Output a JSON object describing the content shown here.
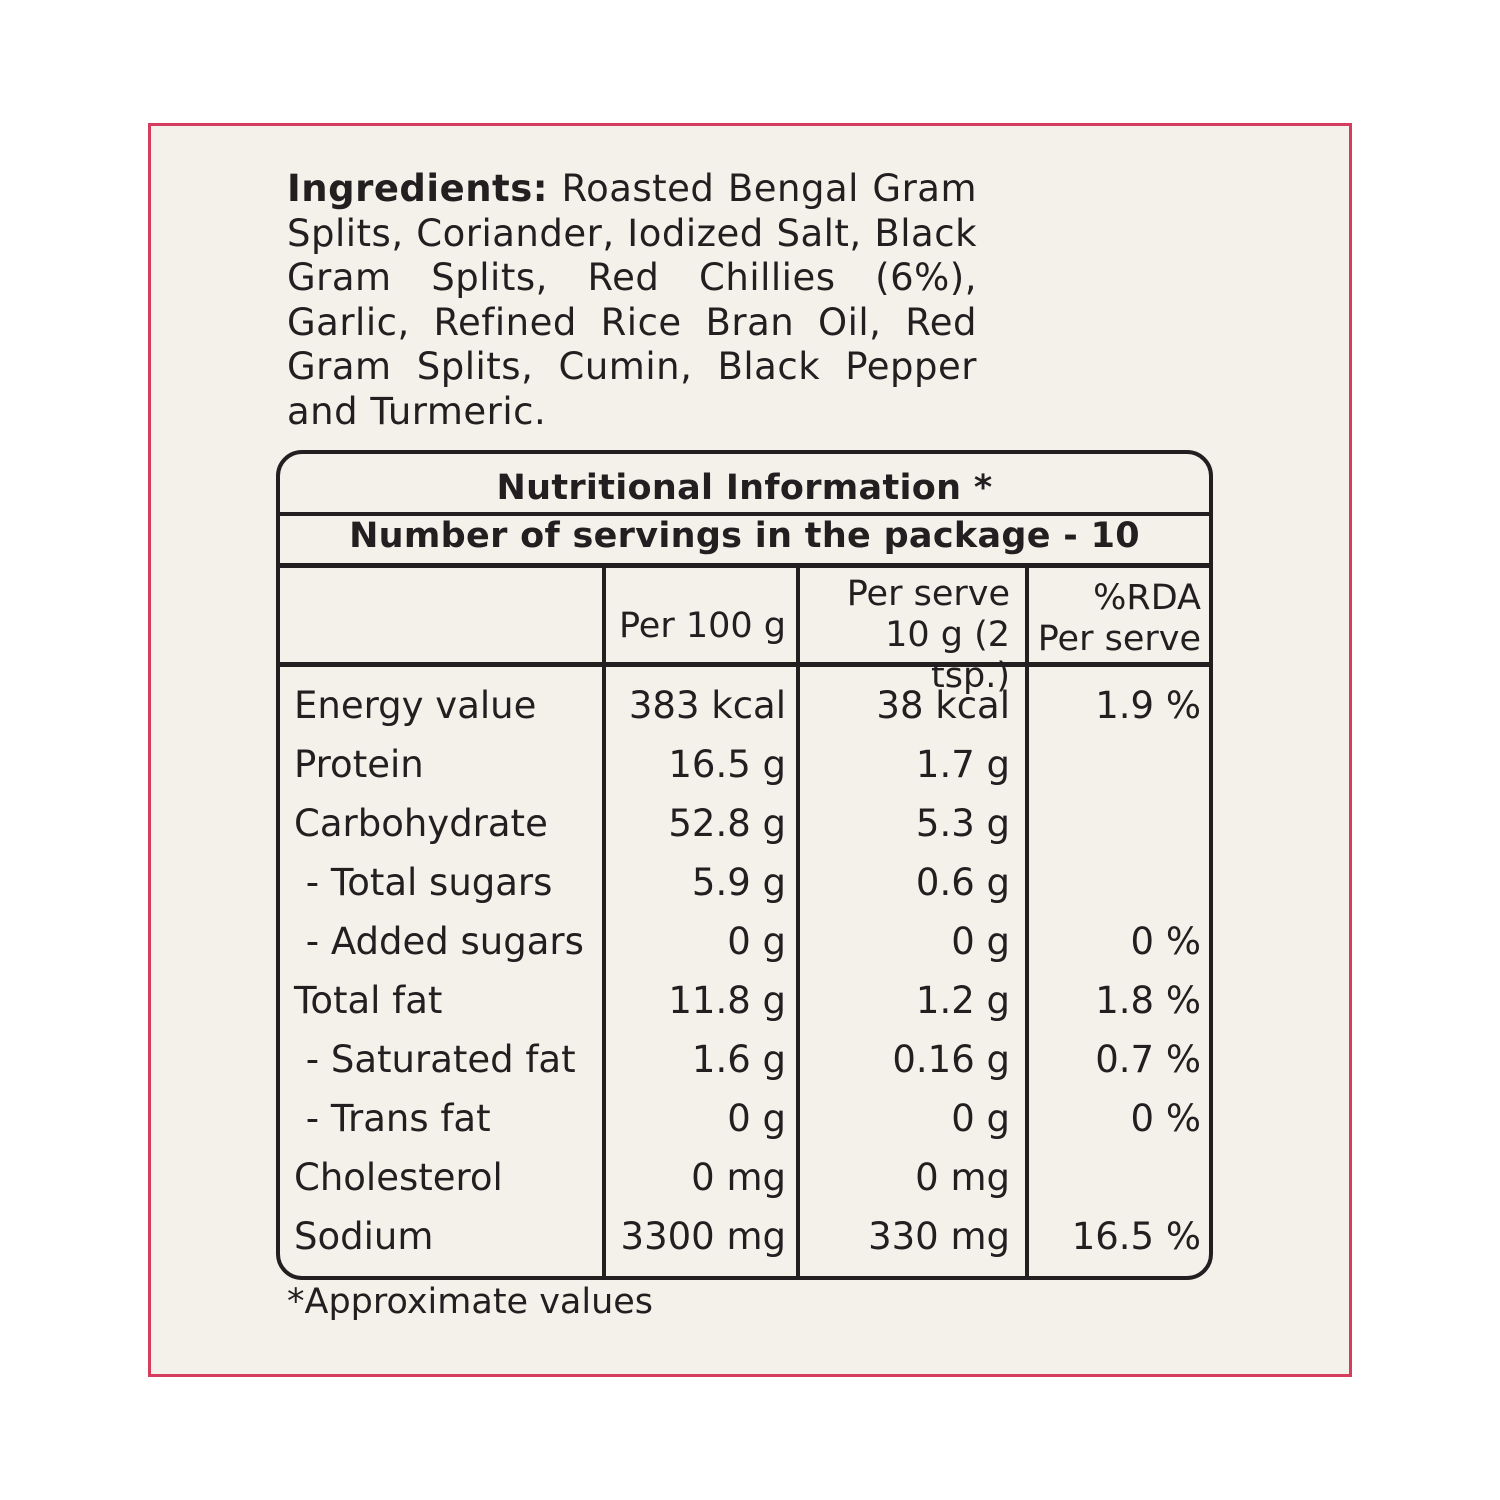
{
  "ingredients": {
    "label": "Ingredients:",
    "text": "Roasted Bengal Gram Splits, Coriander, Iodized Salt, Black Gram Splits, Red Chillies (6%), Garlic, Refined Rice Bran Oil, Red Gram Splits, Cumin, Black Pepper and Turmeric."
  },
  "nutrition": {
    "title": "Nutritional Information *",
    "servings": "Number of servings in the package - 10",
    "columns": {
      "per100_header": "Per 100 g",
      "perserve_line1": "Per serve",
      "perserve_line2": "10 g (2 tsp.)",
      "rda_line1": "%RDA",
      "rda_line2": "Per serve"
    },
    "rows": [
      {
        "name": "Energy value",
        "per100": "383 kcal",
        "perserve": "38 kcal",
        "rda": "1.9 %"
      },
      {
        "name": "Protein",
        "per100": "16.5 g",
        "perserve": "1.7 g",
        "rda": ""
      },
      {
        "name": "Carbohydrate",
        "per100": "52.8 g",
        "perserve": "5.3 g",
        "rda": ""
      },
      {
        "name": " - Total sugars",
        "per100": "5.9 g",
        "perserve": "0.6 g",
        "rda": ""
      },
      {
        "name": " - Added sugars",
        "per100": "0 g",
        "perserve": "0 g",
        "rda": "0 %"
      },
      {
        "name": "Total fat",
        "per100": "11.8 g",
        "perserve": "1.2 g",
        "rda": "1.8 %"
      },
      {
        "name": " - Saturated fat",
        "per100": "1.6 g",
        "perserve": "0.16 g",
        "rda": "0.7 %"
      },
      {
        "name": " - Trans fat",
        "per100": "0 g",
        "perserve": "0 g",
        "rda": "0 %"
      },
      {
        "name": "Cholesterol",
        "per100": "0 mg",
        "perserve": "0 mg",
        "rda": ""
      },
      {
        "name": "Sodium",
        "per100": "3300 mg",
        "perserve": "330 mg",
        "rda": "16.5 %"
      }
    ]
  },
  "footnote": "*Approximate values",
  "colors": {
    "border": "#d63c5e",
    "background": "#f4f0ea",
    "text": "#231f20"
  }
}
